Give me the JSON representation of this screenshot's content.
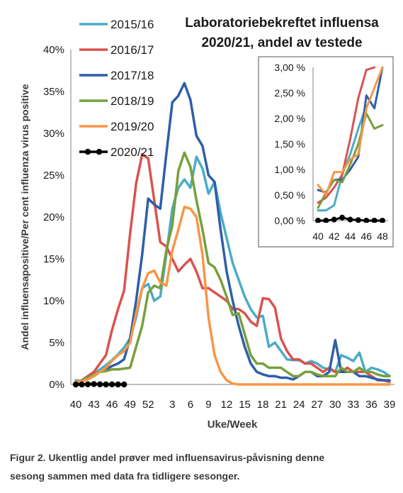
{
  "chart_data": [
    {
      "type": "line",
      "title_lines": [
        "Laboratoriebekreftet influensa",
        "2020/21, andel av testede"
      ],
      "ylabel": "Andel influensapositive/Per cent influenza virus positive",
      "xlabel": "Uke/Week",
      "ylim": [
        0,
        40
      ],
      "yticks": [
        "0%",
        "5%",
        "10%",
        "15%",
        "20%",
        "25%",
        "30%",
        "35%",
        "40%"
      ],
      "ytick_values": [
        0,
        5,
        10,
        15,
        20,
        25,
        30,
        35,
        40
      ],
      "x_categories": [
        40,
        41,
        42,
        43,
        44,
        45,
        46,
        47,
        48,
        49,
        50,
        51,
        52,
        53,
        1,
        2,
        3,
        4,
        5,
        6,
        7,
        8,
        9,
        10,
        11,
        12,
        13,
        14,
        15,
        16,
        17,
        18,
        19,
        20,
        21,
        22,
        23,
        24,
        25,
        26,
        27,
        28,
        29,
        30,
        31,
        32,
        33,
        34,
        35,
        36,
        37,
        38,
        39
      ],
      "xticks": [
        {
          "label": "40",
          "index": 0
        },
        {
          "label": "43",
          "index": 3
        },
        {
          "label": "46",
          "index": 6
        },
        {
          "label": "49",
          "index": 9
        },
        {
          "label": "52",
          "index": 12
        },
        {
          "label": "3",
          "index": 16
        },
        {
          "label": "6",
          "index": 19
        },
        {
          "label": "9",
          "index": 22
        },
        {
          "label": "12",
          "index": 25
        },
        {
          "label": "15",
          "index": 28
        },
        {
          "label": "18",
          "index": 31
        },
        {
          "label": "21",
          "index": 34
        },
        {
          "label": "24",
          "index": 37
        },
        {
          "label": "27",
          "index": 40
        },
        {
          "label": "30",
          "index": 43
        },
        {
          "label": "33",
          "index": 46
        },
        {
          "label": "36",
          "index": 49
        },
        {
          "label": "39",
          "index": 52
        }
      ],
      "grid": false,
      "legend_position": "top-left",
      "series": [
        {
          "name": "2015/16",
          "color": "#4bacc6",
          "values": [
            0.5,
            0.4,
            0.8,
            1.2,
            1.8,
            2.3,
            2.9,
            3.6,
            4.4,
            5.5,
            8.0,
            11.5,
            12.0,
            10.0,
            10.5,
            15.5,
            21.0,
            23.5,
            24.5,
            23.5,
            27.2,
            25.8,
            22.8,
            24.2,
            20.5,
            17.5,
            14.5,
            12.5,
            10.5,
            9.0,
            8.0,
            8.2,
            4.5,
            5.0,
            4.0,
            3.0,
            2.9,
            2.9,
            2.5,
            2.8,
            2.5,
            2.0,
            1.8,
            1.5,
            3.5,
            3.2,
            2.8,
            3.8,
            1.5,
            2.0,
            1.8,
            1.5,
            1.0
          ]
        },
        {
          "name": "2016/17",
          "color": "#d9534f",
          "values": [
            0.3,
            0.5,
            1.0,
            1.5,
            2.5,
            3.5,
            6.5,
            9.0,
            11.2,
            18.0,
            24.0,
            27.5,
            27.0,
            22.0,
            17.0,
            16.5,
            15.0,
            13.5,
            14.3,
            15.0,
            13.5,
            11.5,
            11.5,
            11.0,
            10.5,
            10.0,
            9.0,
            9.0,
            8.5,
            7.5,
            7.0,
            10.3,
            10.2,
            9.2,
            5.5,
            4.0,
            3.0,
            3.0,
            2.5,
            2.5,
            2.0,
            1.5,
            2.0,
            1.5,
            1.5,
            2.0,
            1.5,
            1.5,
            1.5,
            1.0,
            0.5,
            0.5,
            0.3
          ]
        },
        {
          "name": "2017/18",
          "color": "#2e5fa8",
          "values": [
            0.0,
            0.4,
            0.8,
            1.0,
            1.5,
            1.8,
            2.2,
            2.5,
            3.0,
            5.5,
            10.0,
            15.5,
            22.2,
            21.5,
            21.0,
            27.5,
            33.7,
            34.5,
            36.0,
            34.0,
            29.7,
            28.5,
            25.0,
            24.2,
            18.5,
            13.5,
            10.0,
            7.0,
            4.5,
            2.5,
            1.5,
            1.2,
            1.0,
            1.0,
            0.8,
            0.8,
            0.6,
            1.0,
            1.5,
            1.5,
            1.0,
            1.0,
            1.5,
            5.3,
            1.5,
            1.5,
            1.5,
            1.0,
            1.0,
            0.8,
            0.6,
            0.5,
            0.5
          ]
        },
        {
          "name": "2018/19",
          "color": "#77a03c",
          "values": [
            0.3,
            0.5,
            0.8,
            1.2,
            1.5,
            1.6,
            1.8,
            1.8,
            1.9,
            2.0,
            4.5,
            7.0,
            11.0,
            11.8,
            11.5,
            16.0,
            19.0,
            25.5,
            27.7,
            26.0,
            22.0,
            18.5,
            14.5,
            14.0,
            12.5,
            10.5,
            8.3,
            8.5,
            6.0,
            3.5,
            2.5,
            2.5,
            2.0,
            2.0,
            2.0,
            1.5,
            1.0,
            1.0,
            1.5,
            1.5,
            1.2,
            1.0,
            1.0,
            1.0,
            2.0,
            1.5,
            1.5,
            2.0,
            1.5,
            1.5,
            1.2,
            1.0,
            1.0
          ]
        },
        {
          "name": "2019/20",
          "color": "#f79646",
          "values": [
            0.3,
            0.4,
            0.6,
            1.0,
            1.5,
            2.0,
            2.8,
            3.5,
            4.0,
            5.0,
            8.5,
            11.5,
            13.3,
            13.6,
            12.2,
            11.8,
            16.0,
            18.5,
            21.2,
            21.0,
            20.0,
            15.5,
            8.0,
            3.5,
            1.5,
            0.5,
            0.1,
            0.0,
            0.0,
            0.0,
            0.0,
            0.0,
            0.0,
            0.0,
            0.0,
            0.0,
            0.0,
            0.0,
            0.0,
            0.0,
            0.0,
            0.0,
            0.0,
            0.0,
            0.0,
            0.0,
            0.0,
            0.0,
            0.0,
            0.0,
            0.0,
            0.0,
            0.0
          ]
        },
        {
          "name": "2020/21",
          "color": "#000000",
          "marker": "circle",
          "values": [
            0.0,
            0.0,
            0.02,
            0.05,
            0.02,
            0.0,
            0.01,
            0.0,
            0.0
          ]
        }
      ]
    },
    {
      "type": "line",
      "role": "inset",
      "ylim": [
        0,
        3
      ],
      "yticks": [
        "0,00 %",
        "0,50 %",
        "1,00 %",
        "1,50 %",
        "2,00 %",
        "2,50 %",
        "3,00 %"
      ],
      "ytick_values": [
        0,
        0.5,
        1.0,
        1.5,
        2.0,
        2.5,
        3.0
      ],
      "x_categories": [
        40,
        41,
        42,
        43,
        44,
        45,
        46,
        47,
        48
      ],
      "xticks": [
        "40",
        "42",
        "44",
        "46",
        "48"
      ],
      "xtick_indices": [
        0,
        2,
        4,
        6,
        8
      ],
      "grid": false,
      "series": [
        {
          "name": "2015/16",
          "color": "#4bacc6",
          "values": [
            0.2,
            0.2,
            0.3,
            0.9,
            1.3,
            1.8,
            2.25,
            null,
            null
          ]
        },
        {
          "name": "2016/17",
          "color": "#d9534f",
          "values": [
            0.35,
            0.45,
            0.65,
            0.9,
            1.6,
            2.4,
            2.95,
            3.0,
            null
          ]
        },
        {
          "name": "2017/18",
          "color": "#2e5fa8",
          "values": [
            0.6,
            0.55,
            0.8,
            0.8,
            1.0,
            1.25,
            2.45,
            2.2,
            3.0
          ]
        },
        {
          "name": "2018/19",
          "color": "#77a03c",
          "values": [
            0.25,
            0.55,
            0.8,
            0.75,
            1.1,
            1.5,
            2.1,
            1.8,
            1.87
          ]
        },
        {
          "name": "2019/20",
          "color": "#f79646",
          "values": [
            0.7,
            0.5,
            0.95,
            0.95,
            1.2,
            1.3,
            2.2,
            2.6,
            3.0
          ]
        },
        {
          "name": "2020/21",
          "color": "#000000",
          "marker": "circle",
          "values": [
            0.0,
            0.0,
            0.02,
            0.06,
            0.02,
            0.01,
            0.0,
            0.0,
            0.0
          ]
        }
      ]
    }
  ],
  "caption": {
    "line1": "Figur 2. Ukentlig andel prøver med influensavirus-påvisning denne",
    "line2": "sesong sammen med data fra tidligere sesonger."
  }
}
